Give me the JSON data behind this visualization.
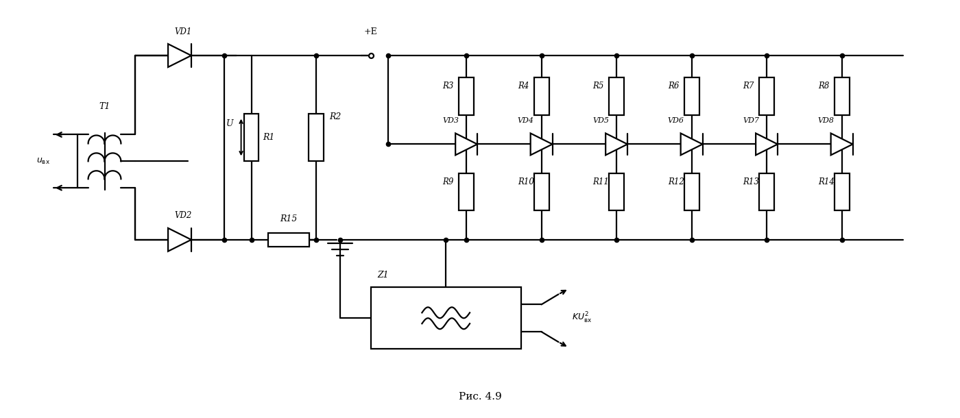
{
  "title": "Рис. 4.9",
  "bg_color": "#ffffff",
  "line_color": "#000000",
  "line_width": 1.6,
  "fig_width": 14.0,
  "fig_height": 6.1,
  "top_r_labels": [
    "R3",
    "R4",
    "R5",
    "R6",
    "R7",
    "R8"
  ],
  "vd_labels": [
    "VD3",
    "VD4",
    "VD5",
    "VD6",
    "VD7",
    "VD8"
  ],
  "bot_r_labels": [
    "R9",
    "R10",
    "R11",
    "R12",
    "R13",
    "R14"
  ]
}
